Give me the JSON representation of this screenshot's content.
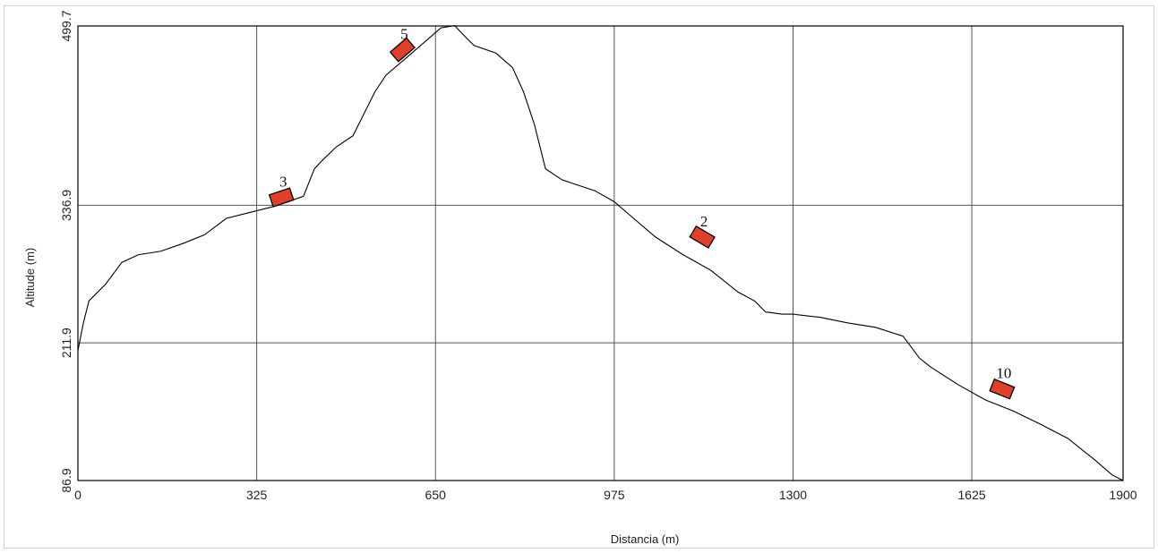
{
  "chart_data": {
    "type": "line",
    "xlabel": "Distancia (m)",
    "ylabel": "Altitude (m)",
    "xlim": [
      0,
      1900
    ],
    "ylim": [
      86.9,
      499.7
    ],
    "x_ticks": [
      "0",
      "325",
      "650",
      "975",
      "1300",
      "1625",
      "1900"
    ],
    "y_ticks": [
      "86.9",
      "211.9",
      "336.9",
      "499.7"
    ],
    "grid": true,
    "line_color": "#000000",
    "marker_color": "#e0402a",
    "series": [
      {
        "x": [
          0,
          10,
          20,
          50,
          80,
          110,
          150,
          190,
          230,
          270,
          310,
          350,
          380,
          410,
          430,
          445,
          470,
          500,
          540,
          560,
          600,
          630,
          660,
          685,
          700,
          720,
          760,
          790,
          810,
          830,
          850,
          880,
          910,
          940,
          975,
          1010,
          1050,
          1100,
          1150,
          1200,
          1230,
          1250,
          1280,
          1300,
          1350,
          1400,
          1450,
          1500,
          1530,
          1550,
          1600,
          1650,
          1700,
          1750,
          1800,
          1850,
          1880,
          1900
        ],
        "y": [
          205,
          230,
          250,
          265,
          285,
          292,
          295,
          302,
          310,
          325,
          330,
          335,
          340,
          345,
          370,
          378,
          390,
          400,
          440,
          455,
          472,
          485,
          498,
          500,
          492,
          482,
          475,
          462,
          440,
          410,
          370,
          360,
          355,
          350,
          340,
          325,
          308,
          292,
          278,
          258,
          250,
          240,
          238,
          238,
          235,
          230,
          226,
          218,
          198,
          190,
          174,
          160,
          150,
          138,
          125,
          105,
          92,
          86.9
        ]
      }
    ],
    "markers": [
      {
        "label": "3",
        "x": 370,
        "y": 344
      },
      {
        "label": "5",
        "x": 590,
        "y": 478
      },
      {
        "label": "2",
        "x": 1135,
        "y": 308
      },
      {
        "label": "10",
        "x": 1680,
        "y": 170
      }
    ]
  }
}
